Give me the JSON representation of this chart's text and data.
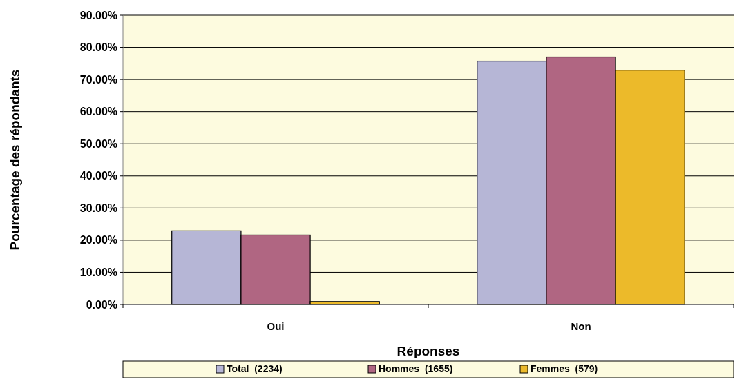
{
  "chart_data": {
    "type": "bar",
    "xlabel": "Réponses",
    "ylabel": "Pourcentage des répondants",
    "categories": [
      "Oui",
      "Non"
    ],
    "series": [
      {
        "name": "Total  (2234)",
        "color": "#b6b6d6",
        "values": [
          22.9,
          75.7
        ]
      },
      {
        "name": "Hommes  (1655)",
        "color": "#b06682",
        "values": [
          21.6,
          77.0
        ]
      },
      {
        "name": "Femmes  (579)",
        "color": "#ecba2a",
        "values": [
          0.9,
          72.9
        ]
      }
    ],
    "ylim": [
      0,
      90
    ],
    "yticks": [
      {
        "value": 0,
        "label": "0.00%"
      },
      {
        "value": 10,
        "label": "10.00%"
      },
      {
        "value": 20,
        "label": "20.00%"
      },
      {
        "value": 30,
        "label": "30.00%"
      },
      {
        "value": 40,
        "label": "40.00%"
      },
      {
        "value": 50,
        "label": "50.00%"
      },
      {
        "value": 60,
        "label": "60.00%"
      },
      {
        "value": 70,
        "label": "70.00%"
      },
      {
        "value": 80,
        "label": "80.00%"
      },
      {
        "value": 90,
        "label": "90.00%"
      }
    ],
    "grid": "y",
    "legend": "bottom"
  }
}
